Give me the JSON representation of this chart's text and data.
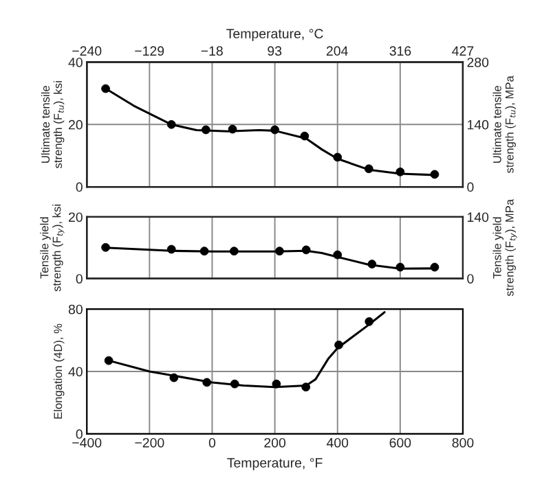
{
  "chart_data": [
    {
      "type": "scatter",
      "ylabel": "Ultimate tensile\nstrength (F$_{tu}$), ksi",
      "y2label": "Ultimate tensile\nstrength (F$_{tu}$), MPa",
      "x2label": "Temperature, °C",
      "xlim": [
        -400,
        800
      ],
      "xticks": [
        -400,
        -200,
        0,
        200,
        400,
        600,
        800
      ],
      "ylim": [
        0,
        40
      ],
      "yticks": [
        0,
        20,
        40
      ],
      "y2lim": [
        0,
        280
      ],
      "y2ticks": [
        0,
        140,
        280
      ],
      "x2lim": [
        -240,
        427
      ],
      "x2ticks": [
        {
          "value": -240,
          "label": "−240"
        },
        {
          "value": -129,
          "label": "−129"
        },
        {
          "value": -18,
          "label": "−18"
        },
        93,
        204,
        316,
        427
      ],
      "tick_labels": "y",
      "grid": true,
      "marker": "circle",
      "series": [
        {
          "color": "#000000",
          "x": [
            -340,
            -130,
            -20,
            65,
            200,
            295,
            400,
            500,
            600,
            710
          ],
          "values": [
            31.5,
            20,
            18.3,
            18.5,
            18.3,
            16.3,
            9.5,
            5.8,
            4.8,
            4.0
          ]
        },
        {
          "type": "line",
          "marker": "none",
          "color": "#000000",
          "x": [
            -340,
            -250,
            -130,
            -50,
            50,
            150,
            200,
            300,
            350,
            400,
            500,
            600,
            710
          ],
          "values": [
            31.5,
            26,
            20,
            18.2,
            17.8,
            18.2,
            18,
            15.5,
            12,
            9,
            5.5,
            4.2,
            3.8
          ]
        }
      ]
    },
    {
      "type": "scatter",
      "ylabel": "Tensile yield\nstrength (F$_{ty}$), ksi",
      "y2label": "Tensile yield\nstrength (F$_{ty}$), MPa",
      "xlim": [
        -400,
        800
      ],
      "xticks": [
        -400,
        -200,
        0,
        200,
        400,
        600,
        800
      ],
      "ylim": [
        0,
        20
      ],
      "yticks": [
        0,
        20
      ],
      "y2lim": [
        0,
        140
      ],
      "y2ticks": [
        0,
        140
      ],
      "tick_labels": "y",
      "grid": true,
      "marker": "circle",
      "series": [
        {
          "color": "#000000",
          "x": [
            -340,
            -130,
            -25,
            70,
            215,
            300,
            400,
            510,
            600,
            710
          ],
          "values": [
            10.1,
            9.5,
            8.9,
            8.9,
            8.9,
            9.3,
            7.7,
            4.7,
            3.7,
            3.7
          ]
        },
        {
          "type": "line",
          "marker": "none",
          "color": "#000000",
          "x": [
            -340,
            -130,
            0,
            200,
            300,
            350,
            400,
            500,
            600,
            710
          ],
          "values": [
            10,
            9,
            8.8,
            8.8,
            9,
            8.3,
            7,
            4.5,
            3.2,
            3.3
          ]
        }
      ]
    },
    {
      "type": "scatter",
      "xlabel": "Temperature, °F",
      "ylabel": "Elongation (4D), %",
      "xlim": [
        -400,
        800
      ],
      "xticks": [
        {
          "value": -400,
          "label": "−400"
        },
        {
          "value": -200,
          "label": "−200"
        },
        0,
        200,
        400,
        600,
        800
      ],
      "ylim": [
        0,
        80
      ],
      "yticks": [
        0,
        40,
        80
      ],
      "grid": true,
      "marker": "circle",
      "series": [
        {
          "color": "#000000",
          "x": [
            -330,
            -122,
            -17,
            72,
            205,
            299,
            404,
            501
          ],
          "values": [
            47,
            36,
            33,
            32,
            32,
            30,
            57,
            72
          ]
        },
        {
          "type": "line",
          "marker": "none",
          "color": "#000000",
          "x": [
            -330,
            -200,
            0,
            100,
            200,
            300,
            330,
            370,
            400,
            500,
            550
          ],
          "values": [
            47,
            40,
            33,
            31,
            30,
            31,
            35,
            48,
            55,
            70,
            78
          ]
        }
      ]
    }
  ]
}
